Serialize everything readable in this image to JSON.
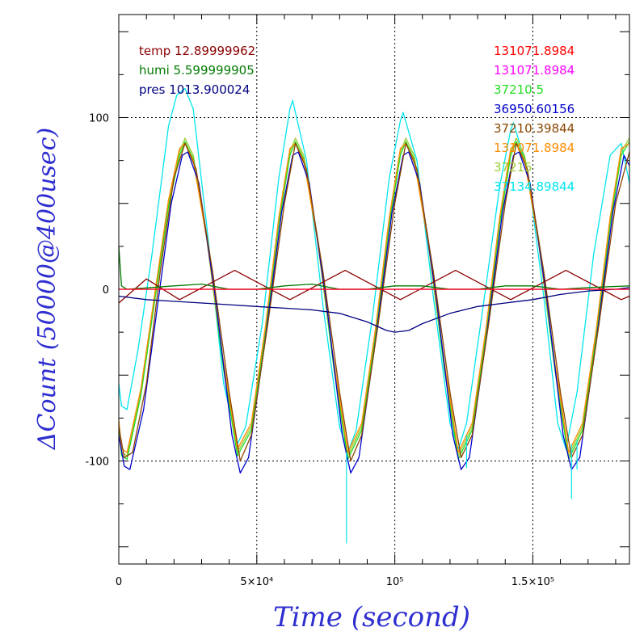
{
  "chart_data": {
    "type": "line",
    "title": "",
    "xlabel": "Time (second)",
    "ylabel": "ΔCount (50000@400usec)",
    "xlim": [
      0,
      185000
    ],
    "ylim": [
      -160,
      160
    ],
    "grid": true,
    "x_ticks": [
      {
        "value": 0,
        "label": "0"
      },
      {
        "value": 50000,
        "label": "5×10⁴"
      },
      {
        "value": 100000,
        "label": "10⁵"
      },
      {
        "value": 150000,
        "label": "1.5×10⁵"
      }
    ],
    "y_ticks": [
      {
        "value": 100,
        "label": "100"
      },
      {
        "value": 0,
        "label": "0"
      },
      {
        "value": -100,
        "label": "-100"
      }
    ],
    "env_legend": [
      {
        "text": "temp 12.89999962",
        "color": "#8b0000"
      },
      {
        "text": "humi 5.599999905",
        "color": "#007a00"
      },
      {
        "text": "pres 1013.900024",
        "color": "#000080"
      }
    ],
    "channel_legend": [
      {
        "text": "131071.8984",
        "color": "#ff0000"
      },
      {
        "text": "131071.8984",
        "color": "#ff00ff"
      },
      {
        "text": "37210.5",
        "color": "#22dd22"
      },
      {
        "text": "36950.60156",
        "color": "#0000cd"
      },
      {
        "text": "37210.39844",
        "color": "#8b4500"
      },
      {
        "text": "131071.8984",
        "color": "#ff8c00"
      },
      {
        "text": "37215",
        "color": "#9acd32"
      },
      {
        "text": "37134.89844",
        "color": "#00e5ee"
      }
    ],
    "series": [
      {
        "color": "#00e5ee",
        "x": [
          0,
          1000,
          3000,
          7000,
          12000,
          18000,
          21000,
          24000,
          27000,
          32000,
          38000,
          43000,
          46000,
          52000,
          58000,
          62000,
          63000,
          68000,
          74000,
          80000,
          83000,
          86000,
          92000,
          98000,
          102000,
          103000,
          108000,
          114000,
          120000,
          123000,
          126000,
          132000,
          138000,
          142000,
          143000,
          148000,
          154000,
          159000,
          162000,
          166000,
          172000,
          178000,
          182000,
          185000
        ],
        "y": [
          -55,
          -68,
          -70,
          -35,
          20,
          95,
          113,
          117,
          105,
          35,
          -55,
          -90,
          -80,
          -20,
          65,
          105,
          110,
          75,
          -10,
          -80,
          -95,
          -82,
          -15,
          65,
          98,
          103,
          75,
          -5,
          -78,
          -93,
          -78,
          -10,
          60,
          93,
          97,
          70,
          -5,
          -78,
          -93,
          -60,
          20,
          78,
          85,
          62
        ]
      },
      {
        "color": "#9acd32",
        "x": [
          0,
          1000,
          3000,
          8000,
          13000,
          18000,
          22000,
          24000,
          27000,
          32000,
          38000,
          43000,
          48000,
          53000,
          58000,
          62000,
          64000,
          67000,
          72000,
          78000,
          83000,
          88000,
          93000,
          98000,
          102000,
          104000,
          107000,
          112000,
          118000,
          123000,
          128000,
          133000,
          138000,
          142000,
          144000,
          147000,
          152000,
          158000,
          163000,
          168000,
          173000,
          178000,
          182000,
          185000
        ],
        "y": [
          -78,
          -95,
          -97,
          -60,
          -5,
          50,
          80,
          88,
          78,
          30,
          -45,
          -95,
          -80,
          -25,
          40,
          80,
          88,
          78,
          30,
          -45,
          -97,
          -80,
          -25,
          40,
          80,
          88,
          78,
          30,
          -45,
          -97,
          -80,
          -25,
          40,
          80,
          88,
          78,
          30,
          -45,
          -97,
          -80,
          -25,
          40,
          80,
          88
        ]
      },
      {
        "color": "#22dd22",
        "x": [
          0,
          1000,
          3000,
          8000,
          13000,
          18000,
          22000,
          24000,
          27000,
          32000,
          38000,
          43000,
          48000,
          53000,
          58000,
          62000,
          64000,
          67000,
          72000,
          78000,
          83000,
          88000,
          93000,
          98000,
          102000,
          104000,
          107000,
          112000,
          118000,
          123000,
          128000,
          133000,
          138000,
          142000,
          144000,
          147000,
          152000,
          158000,
          163000,
          168000,
          173000,
          178000,
          182000,
          185000
        ],
        "y": [
          -80,
          -97,
          -99,
          -62,
          -7,
          48,
          78,
          86,
          76,
          28,
          -47,
          -97,
          -82,
          -27,
          38,
          78,
          86,
          76,
          28,
          -47,
          -99,
          -82,
          -27,
          38,
          78,
          86,
          76,
          28,
          -47,
          -99,
          -82,
          -27,
          38,
          78,
          86,
          76,
          28,
          -47,
          -99,
          -82,
          -27,
          38,
          78,
          86
        ]
      },
      {
        "color": "#ff8c00",
        "x": [
          0,
          1000,
          3000,
          8000,
          13000,
          18000,
          22000,
          24000,
          27000,
          32000,
          38000,
          43000,
          48000,
          53000,
          58000,
          62000,
          64000,
          67000,
          72000,
          78000,
          83000,
          88000,
          93000,
          98000,
          102000,
          104000,
          107000,
          112000,
          118000,
          123000,
          128000,
          133000,
          138000,
          142000,
          144000,
          147000,
          152000,
          158000,
          163000,
          168000,
          173000,
          178000,
          182000,
          185000
        ],
        "y": [
          -76,
          -93,
          -95,
          -58,
          -3,
          52,
          82,
          85,
          75,
          28,
          -43,
          -93,
          -78,
          -23,
          42,
          82,
          85,
          75,
          28,
          -43,
          -95,
          -78,
          -23,
          42,
          82,
          85,
          75,
          28,
          -43,
          -95,
          -78,
          -23,
          42,
          82,
          85,
          75,
          28,
          -43,
          -95,
          -78,
          -23,
          42,
          82,
          85
        ]
      },
      {
        "color": "#0000cd",
        "x": [
          0,
          2000,
          4000,
          9000,
          14000,
          19000,
          23000,
          25000,
          29000,
          35000,
          41000,
          44000,
          47000,
          53000,
          59000,
          63000,
          65000,
          69000,
          75000,
          81000,
          84000,
          87000,
          93000,
          99000,
          103000,
          105000,
          109000,
          115000,
          121000,
          124000,
          127000,
          133000,
          139000,
          143000,
          145000,
          149000,
          155000,
          161000,
          164000,
          167000,
          173000,
          179000,
          183000,
          185000
        ],
        "y": [
          -85,
          -103,
          -105,
          -70,
          -10,
          50,
          78,
          80,
          62,
          -5,
          -85,
          -107,
          -98,
          -30,
          45,
          78,
          80,
          62,
          -5,
          -85,
          -107,
          -98,
          -30,
          45,
          78,
          80,
          62,
          -5,
          -85,
          -105,
          -98,
          -30,
          45,
          78,
          80,
          62,
          -5,
          -85,
          -105,
          -98,
          -30,
          45,
          78,
          72
        ]
      },
      {
        "color": "#8b4500",
        "x": [
          0,
          2000,
          5000,
          10000,
          15000,
          20000,
          24000,
          28000,
          34000,
          40000,
          44000,
          48000,
          54000,
          60000,
          64000,
          68000,
          74000,
          80000,
          84000,
          88000,
          94000,
          100000,
          104000,
          108000,
          114000,
          120000,
          124000,
          128000,
          134000,
          140000,
          144000,
          148000,
          154000,
          160000,
          164000,
          168000,
          174000,
          180000,
          185000
        ],
        "y": [
          -80,
          -98,
          -95,
          -55,
          10,
          65,
          85,
          70,
          10,
          -60,
          -100,
          -85,
          -20,
          50,
          85,
          70,
          10,
          -60,
          -100,
          -85,
          -20,
          50,
          85,
          70,
          10,
          -60,
          -98,
          -85,
          -20,
          50,
          85,
          70,
          10,
          -60,
          -98,
          -85,
          -20,
          50,
          80
        ]
      },
      {
        "color": "#8b0000",
        "x": [
          0,
          10000,
          22000,
          42000,
          62000,
          82000,
          102000,
          122000,
          142000,
          162000,
          182000,
          185000
        ],
        "y": [
          -8,
          6,
          -6,
          11,
          -6,
          11,
          -6,
          11,
          -6,
          11,
          -6,
          -4
        ]
      },
      {
        "color": "#007a00",
        "x": [
          0,
          1000,
          3000,
          20000,
          30000,
          40000,
          50000,
          60000,
          70000,
          80000,
          90000,
          100000,
          110000,
          120000,
          130000,
          140000,
          150000,
          160000,
          170000,
          185000
        ],
        "y": [
          25,
          2,
          0,
          2,
          3,
          0,
          0,
          2,
          3,
          0,
          0,
          2,
          2,
          0,
          0,
          2,
          2,
          0,
          1,
          2
        ]
      },
      {
        "color": "#000080",
        "x": [
          0,
          10000,
          20000,
          30000,
          40000,
          50000,
          60000,
          70000,
          80000,
          90000,
          97000,
          100000,
          105000,
          110000,
          120000,
          130000,
          140000,
          150000,
          160000,
          170000,
          180000,
          185000
        ],
        "y": [
          -4,
          -6,
          -7,
          -8,
          -9,
          -10,
          -11,
          -12,
          -14,
          -19,
          -24,
          -25,
          -24,
          -20,
          -14,
          -10,
          -8,
          -6,
          -3,
          -1,
          0,
          1
        ]
      },
      {
        "color": "#ff00ff",
        "x": [
          0,
          185000
        ],
        "y": [
          0,
          0
        ]
      },
      {
        "color": "#ff0000",
        "x": [
          0,
          185000
        ],
        "y": [
          0,
          0
        ]
      }
    ],
    "spikes": [
      {
        "x": 82500,
        "y0": -95,
        "y1": -148,
        "color": "#00e5ee"
      },
      {
        "x": 126000,
        "y0": -85,
        "y1": -104,
        "color": "#00e5ee"
      },
      {
        "x": 164000,
        "y0": -90,
        "y1": -122,
        "color": "#00e5ee"
      },
      {
        "x": 166000,
        "y0": -88,
        "y1": -105,
        "color": "#00e5ee"
      }
    ]
  }
}
